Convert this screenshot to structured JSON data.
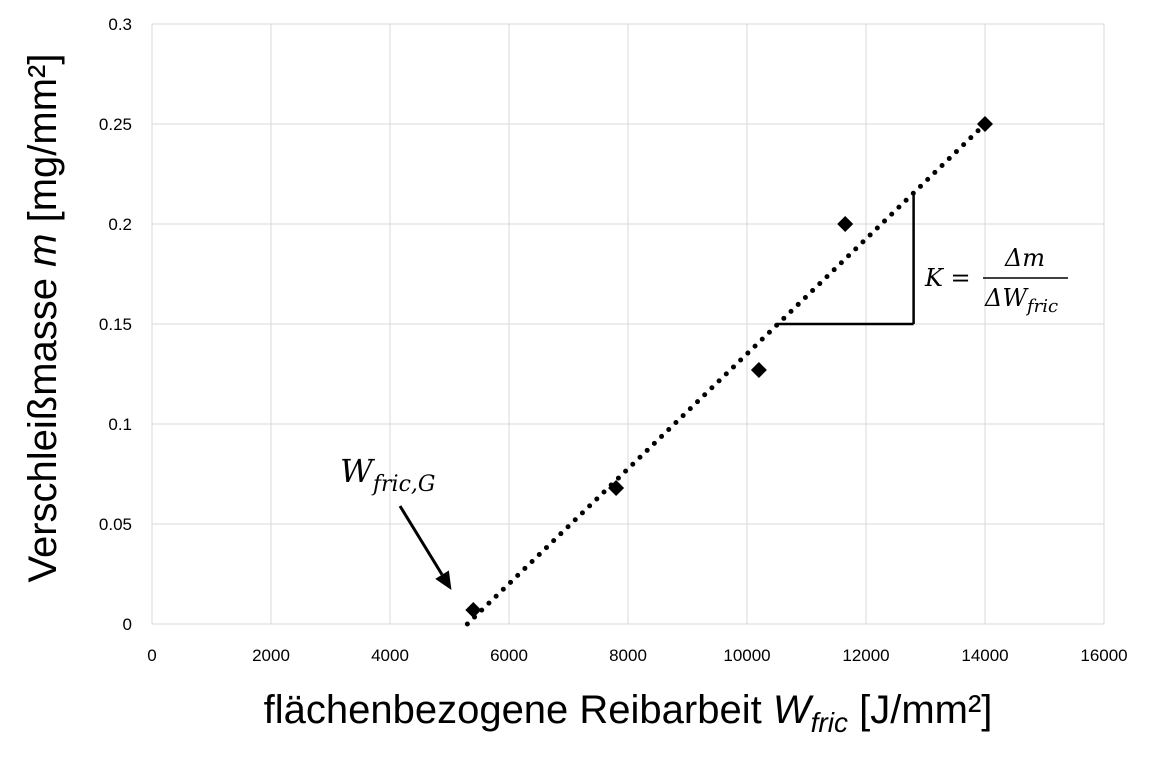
{
  "chart_data": {
    "type": "scatter",
    "xlabel_main": "flächenbezogene Reibarbeit",
    "xlabel_symbol": "W",
    "xlabel_subscript": "fric",
    "xlabel_unit": "[J/mm²]",
    "ylabel_main": "Verschleißmasse",
    "ylabel_symbol": "m",
    "ylabel_unit": "[mg/mm²]",
    "xlim": [
      0,
      16000
    ],
    "ylim": [
      0,
      0.3
    ],
    "xticks": [
      "0",
      "2000",
      "4000",
      "6000",
      "8000",
      "10000",
      "12000",
      "14000",
      "16000"
    ],
    "yticks": [
      "0",
      "0.05",
      "0.1",
      "0.15",
      "0.2",
      "0.25",
      "0.3"
    ],
    "grid": true,
    "series": [
      {
        "marker": "diamond",
        "color": "#000000",
        "points": [
          {
            "x": 5400,
            "y": 0.007
          },
          {
            "x": 7800,
            "y": 0.068
          },
          {
            "x": 10200,
            "y": 0.127
          },
          {
            "x": 11650,
            "y": 0.2
          },
          {
            "x": 14000,
            "y": 0.25
          }
        ]
      }
    ],
    "trendline": {
      "style": "dotted",
      "color": "#000000",
      "from": {
        "x": 5300,
        "y": 0.0
      },
      "to": {
        "x": 14000,
        "y": 0.25
      }
    },
    "slope_triangle": {
      "corner": {
        "x": 12800,
        "y": 0.15
      },
      "top_y": 0.215,
      "left_x": 10500
    },
    "annotations": {
      "threshold_label_base": "W",
      "threshold_label_sub": "fric,G",
      "threshold_target": {
        "x": 5100,
        "y": 0.015
      },
      "formula_lhs": "K =",
      "formula_numerator": "Δm",
      "formula_denominator_base": "ΔW",
      "formula_denominator_sub": "fric"
    }
  }
}
